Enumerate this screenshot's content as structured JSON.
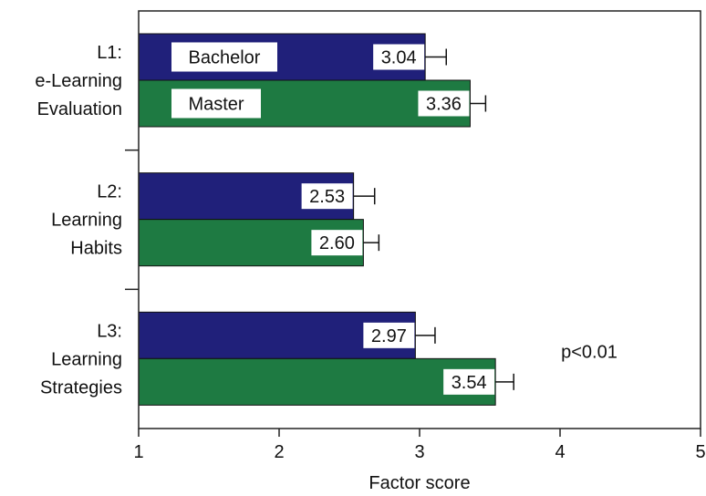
{
  "chart_data": {
    "type": "bar",
    "orientation": "horizontal",
    "title": "",
    "xlabel": "Factor score",
    "ylabel": "",
    "xlim": [
      1,
      5
    ],
    "xticks": [
      "1",
      "2",
      "3",
      "4",
      "5"
    ],
    "grid": false,
    "categories": [
      [
        "L1:",
        "e-Learning",
        "Evaluation"
      ],
      [
        "L2:",
        "Learning",
        "Habits"
      ],
      [
        "L3:",
        "Learning",
        "Strategies"
      ]
    ],
    "series": [
      {
        "name": "Bachelor",
        "color": "#20207a",
        "values": [
          3.04,
          2.53,
          2.97
        ],
        "labels": [
          "3.04",
          "2.53",
          "2.97"
        ],
        "errors": [
          0.15,
          0.15,
          0.14
        ]
      },
      {
        "name": "Master",
        "color": "#1e7a42",
        "values": [
          3.36,
          2.6,
          3.54
        ],
        "labels": [
          "3.36",
          "2.60",
          "3.54"
        ],
        "errors": [
          0.11,
          0.11,
          0.13
        ]
      }
    ],
    "annotations": [
      {
        "text": "p<0.01",
        "category_index": 2
      }
    ]
  }
}
